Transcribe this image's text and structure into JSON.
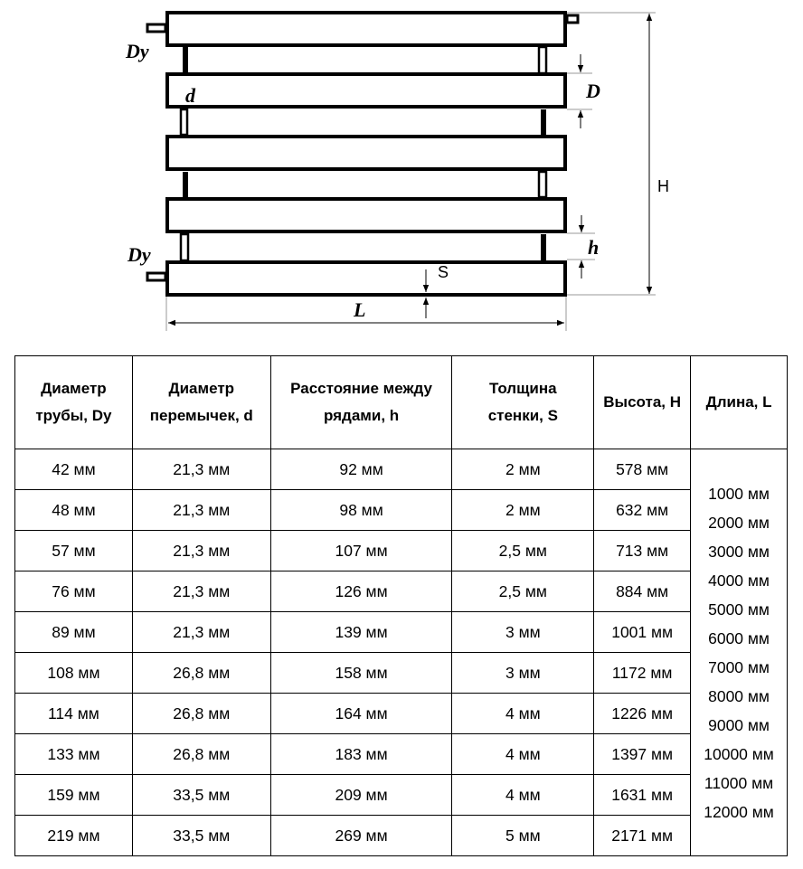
{
  "diagram": {
    "labels": {
      "dy_top": "Dy",
      "dy_bottom": "Dy",
      "d": "d",
      "D": "D",
      "H": "H",
      "h": "h",
      "S": "S",
      "L": "L"
    }
  },
  "table": {
    "headers": [
      [
        "Диаметр",
        "трубы, Dy"
      ],
      [
        "Диаметр",
        "перемычек, d"
      ],
      [
        "Расстояние между",
        "рядами, h"
      ],
      [
        "Толщина",
        "стенки, S"
      ],
      [
        "Высота, H"
      ],
      [
        "Длина, L"
      ]
    ],
    "rows": [
      [
        "42 мм",
        "21,3 мм",
        "92 мм",
        "2 мм",
        "578 мм"
      ],
      [
        "48 мм",
        "21,3 мм",
        "98 мм",
        "2 мм",
        "632 мм"
      ],
      [
        "57 мм",
        "21,3 мм",
        "107 мм",
        "2,5 мм",
        "713 мм"
      ],
      [
        "76 мм",
        "21,3 мм",
        "126 мм",
        "2,5 мм",
        "884 мм"
      ],
      [
        "89 мм",
        "21,3 мм",
        "139 мм",
        "3 мм",
        "1001 мм"
      ],
      [
        "108 мм",
        "26,8 мм",
        "158 мм",
        "3 мм",
        "1172 мм"
      ],
      [
        "114 мм",
        "26,8 мм",
        "164 мм",
        "4 мм",
        "1226 мм"
      ],
      [
        "133 мм",
        "26,8 мм",
        "183 мм",
        "4 мм",
        "1397 мм"
      ],
      [
        "159 мм",
        "33,5 мм",
        "209 мм",
        "4 мм",
        "1631 мм"
      ],
      [
        "219 мм",
        "33,5 мм",
        "269 мм",
        "5 мм",
        "2171 мм"
      ]
    ],
    "lengths": [
      "1000 мм",
      "2000 мм",
      "3000 мм",
      "4000 мм",
      "5000 мм",
      "6000 мм",
      "7000 мм",
      "8000 мм",
      "9000 мм",
      "10000 мм",
      "11000 мм",
      "12000 мм"
    ]
  }
}
